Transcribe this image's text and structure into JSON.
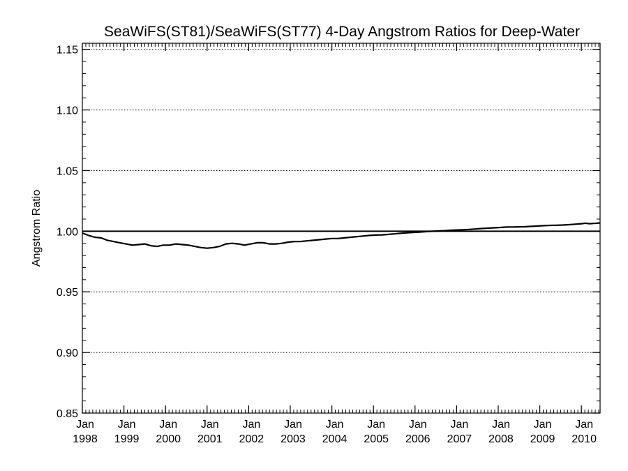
{
  "chart_data": {
    "type": "line",
    "title": "SeaWiFS(ST81)/SeaWiFS(ST77) 4-Day Angstrom Ratios for Deep-Water",
    "ylabel": "Angstrom Ratio",
    "xlabel": "",
    "ylim": [
      0.85,
      1.155
    ],
    "xlim": [
      1998.0,
      2010.45
    ],
    "y_ticks": [
      "0.85",
      "0.90",
      "0.95",
      "1.00",
      "1.05",
      "1.10",
      "1.15"
    ],
    "y_tick_values": [
      0.85,
      0.9,
      0.95,
      1.0,
      1.05,
      1.1,
      1.15
    ],
    "x_ticks": [
      {
        "month": "Jan",
        "year": "1998",
        "value": 1998.0
      },
      {
        "month": "Jan",
        "year": "1999",
        "value": 1999.0
      },
      {
        "month": "Jan",
        "year": "2000",
        "value": 2000.0
      },
      {
        "month": "Jan",
        "year": "2001",
        "value": 2001.0
      },
      {
        "month": "Jan",
        "year": "2002",
        "value": 2002.0
      },
      {
        "month": "Jan",
        "year": "2003",
        "value": 2003.0
      },
      {
        "month": "Jan",
        "year": "2004",
        "value": 2004.0
      },
      {
        "month": "Jan",
        "year": "2005",
        "value": 2005.0
      },
      {
        "month": "Jan",
        "year": "2006",
        "value": 2006.0
      },
      {
        "month": "Jan",
        "year": "2007",
        "value": 2007.0
      },
      {
        "month": "Jan",
        "year": "2008",
        "value": 2008.0
      },
      {
        "month": "Jan",
        "year": "2009",
        "value": 2009.0
      },
      {
        "month": "Jan",
        "year": "2010",
        "value": 2010.0
      }
    ],
    "grid": "horizontal dotted",
    "reference_line": 1.0,
    "series": [
      {
        "color": "#000000",
        "x": [
          1998.0,
          1998.15,
          1998.3,
          1998.45,
          1998.6,
          1998.75,
          1998.9,
          1999.05,
          1999.2,
          1999.35,
          1999.5,
          1999.65,
          1999.8,
          1999.95,
          2000.1,
          2000.25,
          2000.4,
          2000.55,
          2000.7,
          2000.85,
          2001.0,
          2001.15,
          2001.3,
          2001.45,
          2001.6,
          2001.75,
          2001.9,
          2002.05,
          2002.2,
          2002.35,
          2002.5,
          2002.65,
          2002.8,
          2002.95,
          2003.1,
          2003.25,
          2003.4,
          2003.55,
          2003.7,
          2003.85,
          2004.0,
          2004.15,
          2004.3,
          2004.45,
          2004.6,
          2004.75,
          2004.9,
          2005.05,
          2005.2,
          2005.35,
          2005.5,
          2005.65,
          2005.8,
          2005.95,
          2006.1,
          2006.25,
          2006.4,
          2006.55,
          2006.7,
          2006.85,
          2007.0,
          2007.15,
          2007.3,
          2007.45,
          2007.6,
          2007.75,
          2007.9,
          2008.05,
          2008.2,
          2008.35,
          2008.5,
          2008.65,
          2008.8,
          2008.95,
          2009.1,
          2009.25,
          2009.4,
          2009.55,
          2009.7,
          2009.85,
          2010.0,
          2010.1,
          2010.2,
          2010.3,
          2010.45
        ],
        "y": [
          0.9985,
          0.9965,
          0.995,
          0.9945,
          0.9925,
          0.9915,
          0.9905,
          0.9895,
          0.9885,
          0.989,
          0.9895,
          0.988,
          0.9875,
          0.9885,
          0.9885,
          0.9895,
          0.989,
          0.9885,
          0.9875,
          0.9865,
          0.986,
          0.9865,
          0.9875,
          0.9895,
          0.99,
          0.9895,
          0.9885,
          0.9895,
          0.9905,
          0.9905,
          0.9895,
          0.9895,
          0.99,
          0.991,
          0.9915,
          0.9915,
          0.992,
          0.9925,
          0.993,
          0.9935,
          0.994,
          0.994,
          0.9945,
          0.995,
          0.9955,
          0.996,
          0.9965,
          0.9968,
          0.997,
          0.9973,
          0.9978,
          0.9983,
          0.9987,
          0.999,
          0.9993,
          0.9996,
          0.9999,
          1.0002,
          1.0004,
          1.0008,
          1.001,
          1.0012,
          1.0014,
          1.0018,
          1.0022,
          1.0025,
          1.0028,
          1.0031,
          1.0034,
          1.0035,
          1.0036,
          1.0037,
          1.004,
          1.0043,
          1.0046,
          1.0048,
          1.0049,
          1.0051,
          1.0054,
          1.0058,
          1.0062,
          1.0066,
          1.0062,
          1.0064,
          1.0068
        ]
      }
    ]
  }
}
